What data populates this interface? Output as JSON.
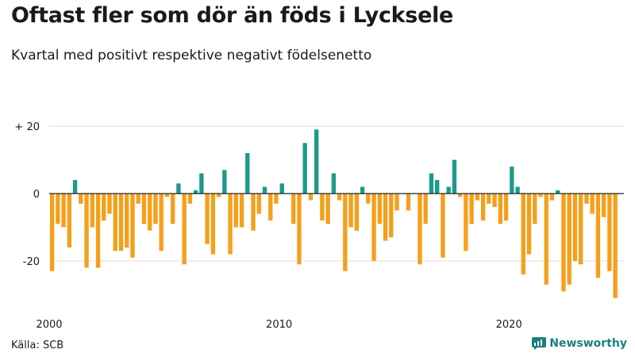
{
  "title": "Oftast fler som dör än föds i Lycksele",
  "subtitle": "Kvartal med positivt respektive negativt födelsenetto",
  "source": "Källa: SCB",
  "brand": "Newsworthy",
  "colors": {
    "positive": "#1d9a8c",
    "negative": "#f5a01b",
    "grid": "#dddddd",
    "zero": "#222222",
    "brand": "#1b7f7c"
  },
  "chart_data": {
    "type": "bar",
    "title": "Oftast fler som dör än föds i Lycksele",
    "subtitle": "Kvartal med positivt respektive negativt födelsenetto",
    "xlabel": "",
    "ylabel": "",
    "x_start_year": 2000,
    "quarters_per_year": 4,
    "x_ticks": [
      {
        "year": 2000,
        "label": "2000"
      },
      {
        "year": 2010,
        "label": "2010"
      },
      {
        "year": 2020,
        "label": "2020"
      }
    ],
    "y_ticks": [
      {
        "value": 20,
        "label": "+ 20"
      },
      {
        "value": 0,
        "label": "0"
      },
      {
        "value": -20,
        "label": "-20"
      }
    ],
    "ylim": [
      -32,
      21
    ],
    "grid": true,
    "values": [
      -23,
      -9,
      -10,
      -16,
      4,
      -3,
      -22,
      -10,
      -22,
      -8,
      -6,
      -17,
      -17,
      -16,
      -19,
      -3,
      -9,
      -11,
      -9,
      -17,
      -1,
      -9,
      3,
      -21,
      -3,
      1,
      6,
      -15,
      -18,
      -1,
      7,
      -18,
      -10,
      -10,
      12,
      -11,
      -6,
      2,
      -8,
      -3,
      3,
      0,
      -9,
      -21,
      15,
      -2,
      19,
      -8,
      -9,
      6,
      -2,
      -23,
      -10,
      -11,
      2,
      -3,
      -20,
      -9,
      -14,
      -13,
      -5,
      0,
      -5,
      0,
      -21,
      -9,
      6,
      4,
      -19,
      2,
      10,
      -1,
      -17,
      -9,
      -2,
      -8,
      -3,
      -4,
      -9,
      -8,
      8,
      2,
      -24,
      -18,
      -9,
      -1,
      -27,
      -2,
      1,
      -29,
      -27,
      -20,
      -21,
      -3,
      -6,
      -25,
      -7,
      -23,
      -31
    ]
  }
}
